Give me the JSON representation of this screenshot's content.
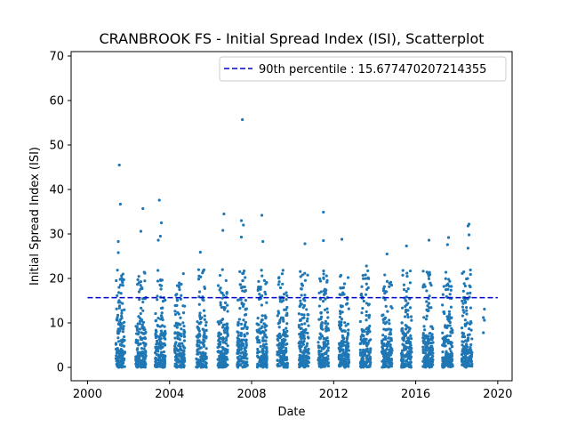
{
  "chart_data": {
    "type": "scatter",
    "title": "CRANBROOK FS - Initial Spread Index (ISI), Scatterplot",
    "xlabel": "Date",
    "ylabel": "Initial Spread Index (ISI)",
    "xlim": [
      1999.2,
      2020.7
    ],
    "ylim": [
      -3,
      71
    ],
    "x_ticks": [
      2000,
      2004,
      2008,
      2012,
      2016,
      2020
    ],
    "y_ticks": [
      0,
      10,
      20,
      30,
      40,
      50,
      60,
      70
    ],
    "grid": false,
    "legend_position": "top-right",
    "reference_line": {
      "label": "90th percentile : 15.677470207214355",
      "value": 15.677470207214355,
      "style": "dashed",
      "color": "#0000cc",
      "x_range": [
        2000,
        2020
      ]
    },
    "point_color": "#1f77b4",
    "series": [
      {
        "seasons": [
          {
            "center": 2001.6,
            "spread": 0.22
          },
          {
            "center": 2002.6,
            "spread": 0.25
          },
          {
            "center": 2003.55,
            "spread": 0.25
          },
          {
            "center": 2004.5,
            "spread": 0.25
          },
          {
            "center": 2005.55,
            "spread": 0.25
          },
          {
            "center": 2006.6,
            "spread": 0.25
          },
          {
            "center": 2007.55,
            "spread": 0.25
          },
          {
            "center": 2008.5,
            "spread": 0.25
          },
          {
            "center": 2009.5,
            "spread": 0.25
          },
          {
            "center": 2010.55,
            "spread": 0.25
          },
          {
            "center": 2011.5,
            "spread": 0.25
          },
          {
            "center": 2012.5,
            "spread": 0.25
          },
          {
            "center": 2013.55,
            "spread": 0.25
          },
          {
            "center": 2014.6,
            "spread": 0.25
          },
          {
            "center": 2015.55,
            "spread": 0.25
          },
          {
            "center": 2016.6,
            "spread": 0.25
          },
          {
            "center": 2017.55,
            "spread": 0.25
          },
          {
            "center": 2018.5,
            "spread": 0.25
          },
          {
            "center": 2019.3,
            "spread": 0.08
          }
        ],
        "notable_points": [
          [
            2001.55,
            45.5
          ],
          [
            2001.6,
            36.7
          ],
          [
            2001.5,
            28.3
          ],
          [
            2001.5,
            25.8
          ],
          [
            2002.7,
            35.7
          ],
          [
            2002.6,
            30.6
          ],
          [
            2003.5,
            37.6
          ],
          [
            2003.6,
            32.5
          ],
          [
            2003.55,
            29.5
          ],
          [
            2003.45,
            28.6
          ],
          [
            2005.5,
            25.9
          ],
          [
            2006.65,
            34.5
          ],
          [
            2006.6,
            30.8
          ],
          [
            2007.55,
            55.7
          ],
          [
            2007.5,
            33.0
          ],
          [
            2007.6,
            32.0
          ],
          [
            2007.5,
            29.3
          ],
          [
            2008.5,
            34.2
          ],
          [
            2008.55,
            28.3
          ],
          [
            2010.6,
            27.8
          ],
          [
            2011.5,
            34.9
          ],
          [
            2011.5,
            28.5
          ],
          [
            2012.4,
            28.8
          ],
          [
            2013.6,
            22.8
          ],
          [
            2014.6,
            25.5
          ],
          [
            2015.55,
            27.3
          ],
          [
            2016.65,
            28.6
          ],
          [
            2017.6,
            29.2
          ],
          [
            2017.55,
            27.6
          ],
          [
            2018.6,
            32.2
          ],
          [
            2018.55,
            31.8
          ],
          [
            2018.6,
            29.8
          ],
          [
            2018.55,
            26.8
          ],
          [
            2019.35,
            13.1
          ],
          [
            2019.3,
            11.2
          ],
          [
            2019.35,
            10.6
          ],
          [
            2019.3,
            7.8
          ]
        ]
      }
    ]
  }
}
